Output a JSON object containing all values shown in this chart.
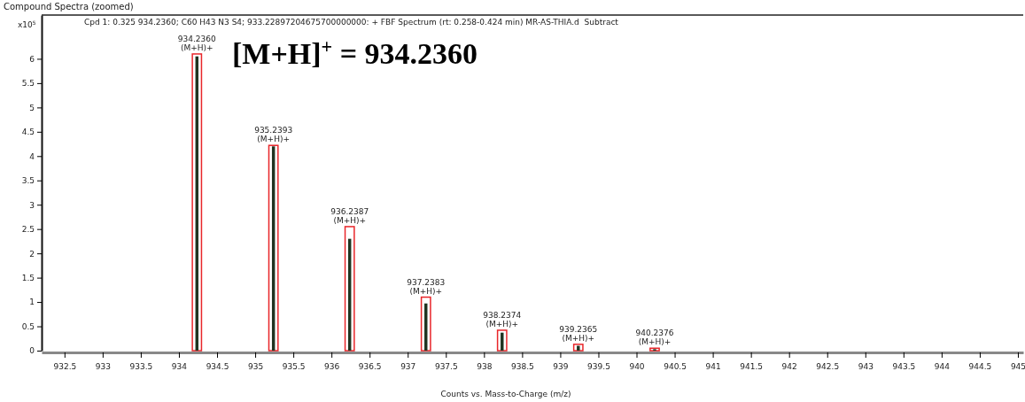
{
  "chart_data": {
    "type": "bar",
    "title": "Compound Spectra (zoomed)",
    "subtitle": "Cpd 1: 0.325 934.2360; C60 H43 N3 S4; 933.22897204675700000000: + FBF Spectrum (rt: 0.258-0.424 min) MR-AS-THIA.d  Subtract",
    "xlabel": "Counts vs. Mass-to-Charge (m/z)",
    "ylabel": "x10$^{5}$",
    "xlim": [
      932.2,
      945.07
    ],
    "xticks": [
      {
        "value": 932.5,
        "label": "932.5"
      },
      933,
      {
        "value": 933.5,
        "label": "933.5"
      },
      934,
      {
        "value": 934.5,
        "label": "934.5"
      },
      935,
      {
        "value": 935.5,
        "label": "935.5"
      },
      936,
      {
        "value": 936.5,
        "label": "936.5"
      },
      937,
      {
        "value": 937.5,
        "label": "937.5"
      },
      938,
      {
        "value": 938.5,
        "label": "938.5"
      },
      939,
      {
        "value": 939.5,
        "label": "939.5"
      },
      940,
      {
        "value": 940.5,
        "label": "940.5"
      },
      941,
      {
        "value": 941.5,
        "label": "941.5"
      },
      942,
      {
        "value": 942.5,
        "label": "942.5"
      },
      943,
      {
        "value": 943.5,
        "label": "943.5"
      },
      944,
      {
        "value": 944.5,
        "label": "944.5"
      },
      945
    ],
    "ylim": [
      0,
      6.9
    ],
    "yticks": [
      0,
      0.5,
      1,
      1.5,
      2,
      2.5,
      3,
      3.5,
      4,
      4.5,
      5,
      5.5,
      6
    ],
    "x": [
      934.236,
      935.2393,
      936.2387,
      937.2383,
      938.2374,
      939.2365,
      940.2376
    ],
    "series": [
      {
        "color": "#e8262a",
        "values": [
          6.1,
          4.22,
          2.55,
          1.1,
          0.42,
          0.13,
          0.05
        ]
      },
      {
        "color": "#1f3320",
        "values": [
          6.05,
          4.2,
          2.3,
          0.97,
          0.37,
          0.1,
          0.03
        ]
      }
    ],
    "annotations": [
      {
        "text": "934.2360\n(M+H)+",
        "x": 934.236,
        "y": 6.1
      },
      {
        "text": "935.2393\n(M+H)+",
        "x": 935.2393,
        "y": 4.22
      },
      {
        "text": "936.2387\n(M+H)+",
        "x": 936.2387,
        "y": 2.55
      },
      {
        "text": "937.2383\n(M+H)+",
        "x": 937.2383,
        "y": 1.1
      },
      {
        "text": "938.2374\n(M+H)+",
        "x": 938.2374,
        "y": 0.42
      },
      {
        "text": "939.2365\n(M+H)+",
        "x": 939.2365,
        "y": 0.13
      },
      {
        "text": "940.2376\n(M+H)+",
        "x": 940.2376,
        "y": 0.05
      },
      "[M+H]$^{+}$ = 934.2360"
    ]
  }
}
